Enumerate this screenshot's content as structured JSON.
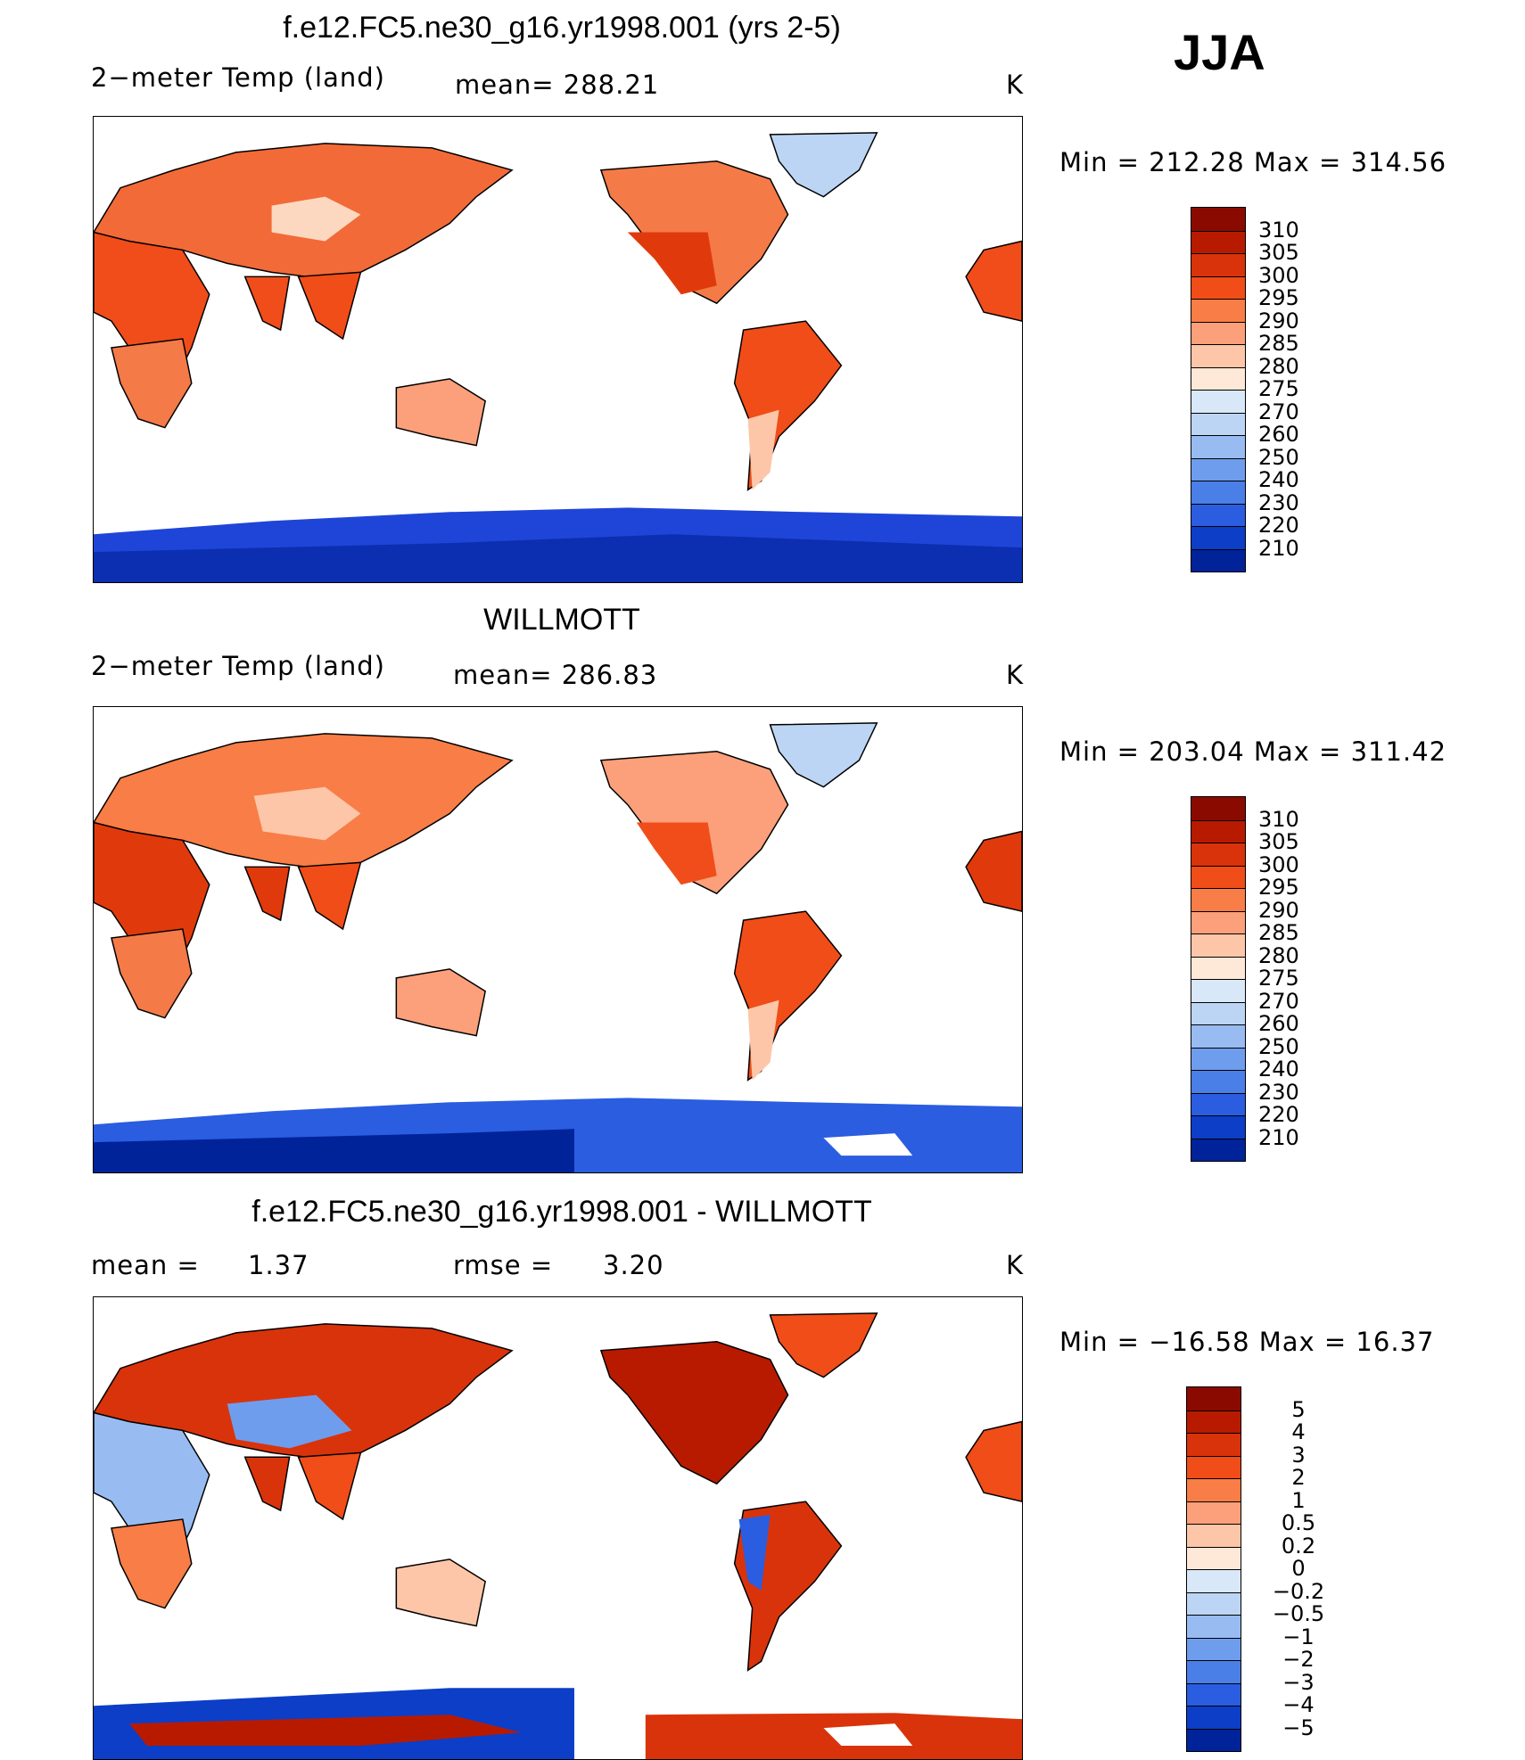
{
  "season": "JJA",
  "units_label": "K",
  "panels": [
    {
      "title": "f.e12.FC5.ne30_g16.yr1998.001 (yrs 2-5)",
      "left_label": "2−meter Temp (land)",
      "mid_label": "mean= 288.21",
      "units": "K",
      "minmax": "Min  =  212.28  Max  =  314.56",
      "map_name": "model-temperature-map"
    },
    {
      "title": "WILLMOTT",
      "left_label": "2−meter Temp (land)",
      "mid_label": "mean= 286.83",
      "units": "K",
      "minmax": "Min  =  203.04  Max  =  311.42",
      "map_name": "obs-temperature-map"
    },
    {
      "title": "f.e12.FC5.ne30_g16.yr1998.001 - WILLMOTT",
      "left_label": "mean  =",
      "left_value": "1.37",
      "mid_label": "rmse  =",
      "mid_value": "3.20",
      "units": "K",
      "minmax": "Min  =  −16.58  Max  =    16.37",
      "map_name": "difference-map"
    }
  ],
  "colorbars": {
    "temperature": {
      "ticks": [
        "310",
        "305",
        "300",
        "295",
        "290",
        "285",
        "280",
        "275",
        "270",
        "260",
        "250",
        "240",
        "230",
        "220",
        "210"
      ],
      "colors": [
        "#8b0a00",
        "#b81a00",
        "#d9330b",
        "#f14d18",
        "#f87d46",
        "#fba07a",
        "#fdc6a8",
        "#fee8d7",
        "#d9e8f8",
        "#bdd5f5",
        "#98bcf2",
        "#6f9ded",
        "#4b7fe8",
        "#2a5de0",
        "#0d3ec8",
        "#00239a"
      ]
    },
    "difference": {
      "ticks": [
        "5",
        "4",
        "3",
        "2",
        "1",
        "0.5",
        "0.2",
        "0",
        "−0.2",
        "−0.5",
        "−1",
        "−2",
        "−3",
        "−4",
        "−5"
      ],
      "colors": [
        "#8b0a00",
        "#b81a00",
        "#d9330b",
        "#f14d18",
        "#f87d46",
        "#fba07a",
        "#fdc6a8",
        "#fee8d7",
        "#d9e8f8",
        "#bdd5f5",
        "#98bcf2",
        "#6f9ded",
        "#4b7fe8",
        "#2a5de0",
        "#0d3ec8",
        "#00239a"
      ]
    }
  },
  "colors": {
    "ocean": "#ffffff",
    "border": "#000000"
  }
}
